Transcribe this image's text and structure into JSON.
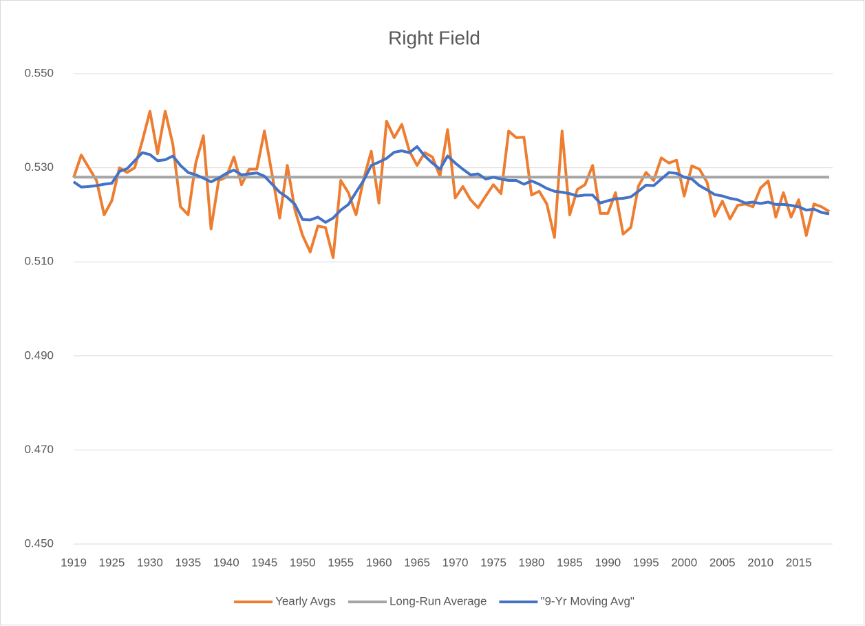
{
  "chart_data": {
    "type": "line",
    "title": "Right Field",
    "categories": [
      "1919",
      null,
      null,
      null,
      null,
      "1925",
      null,
      null,
      null,
      null,
      "1930",
      null,
      null,
      null,
      null,
      "1935",
      null,
      null,
      null,
      null,
      "1940",
      null,
      null,
      null,
      null,
      "1945",
      null,
      null,
      null,
      null,
      "1950",
      null,
      null,
      null,
      null,
      "1955",
      null,
      null,
      null,
      null,
      "1960",
      null,
      null,
      null,
      null,
      "1965",
      null,
      null,
      null,
      null,
      "1970",
      null,
      null,
      null,
      null,
      "1975",
      null,
      null,
      null,
      null,
      "1980",
      null,
      null,
      null,
      null,
      "1985",
      null,
      null,
      null,
      null,
      "1990",
      null,
      null,
      null,
      null,
      "1995",
      null,
      null,
      null,
      null,
      "2000",
      null,
      null,
      null,
      null,
      "2005",
      null,
      null,
      null,
      null,
      "2010",
      null,
      null,
      null,
      null,
      "2015",
      null,
      null,
      null,
      null
    ],
    "series": [
      {
        "name": "Yearly Avgs",
        "color": "#ed7d31",
        "values": [
          0.5279,
          0.5327,
          0.53,
          0.5273,
          0.52,
          0.523,
          0.53,
          0.529,
          0.53,
          0.5357,
          0.542,
          0.533,
          0.542,
          0.535,
          0.5217,
          0.52,
          0.531,
          0.5368,
          0.517,
          0.5273,
          0.528,
          0.5323,
          0.5264,
          0.5297,
          0.5297,
          0.5378,
          0.5286,
          0.5193,
          0.5305,
          0.521,
          0.5156,
          0.5121,
          0.5176,
          0.5173,
          0.5109,
          0.5273,
          0.5247,
          0.52,
          0.5276,
          0.5335,
          0.5225,
          0.5399,
          0.5364,
          0.5392,
          0.5335,
          0.5305,
          0.5332,
          0.5323,
          0.5282,
          0.5381,
          0.5236,
          0.526,
          0.5232,
          0.5215,
          0.524,
          0.5264,
          0.5245,
          0.5378,
          0.5364,
          0.5365,
          0.5242,
          0.525,
          0.5223,
          0.5152,
          0.5378,
          0.52,
          0.5254,
          0.5264,
          0.5305,
          0.5203,
          0.5203,
          0.5247,
          0.5159,
          0.5173,
          0.5261,
          0.529,
          0.5273,
          0.5321,
          0.531,
          0.5316,
          0.524,
          0.5304,
          0.5297,
          0.5269,
          0.5197,
          0.5229,
          0.5191,
          0.522,
          0.5223,
          0.5217,
          0.5257,
          0.5272,
          0.5195,
          0.5247,
          0.5195,
          0.5232,
          0.5156,
          0.5223,
          0.5217,
          0.5207
        ]
      },
      {
        "name": "Long-Run Average",
        "color": "#a5a5a5",
        "values": [
          0.528,
          0.528,
          0.528,
          0.528,
          0.528,
          0.528,
          0.528,
          0.528,
          0.528,
          0.528,
          0.528,
          0.528,
          0.528,
          0.528,
          0.528,
          0.528,
          0.528,
          0.528,
          0.528,
          0.528,
          0.528,
          0.528,
          0.528,
          0.528,
          0.528,
          0.528,
          0.528,
          0.528,
          0.528,
          0.528,
          0.528,
          0.528,
          0.528,
          0.528,
          0.528,
          0.528,
          0.528,
          0.528,
          0.528,
          0.528,
          0.528,
          0.528,
          0.528,
          0.528,
          0.528,
          0.528,
          0.528,
          0.528,
          0.528,
          0.528,
          0.528,
          0.528,
          0.528,
          0.528,
          0.528,
          0.528,
          0.528,
          0.528,
          0.528,
          0.528,
          0.528,
          0.528,
          0.528,
          0.528,
          0.528,
          0.528,
          0.528,
          0.528,
          0.528,
          0.528,
          0.528,
          0.528,
          0.528,
          0.528,
          0.528,
          0.528,
          0.528,
          0.528,
          0.528,
          0.528,
          0.528,
          0.528,
          0.528,
          0.528,
          0.528,
          0.528,
          0.528,
          0.528,
          0.528,
          0.528,
          0.528,
          0.528,
          0.528,
          0.528,
          0.528,
          0.528,
          0.528,
          0.528,
          0.528,
          0.528
        ]
      },
      {
        "name": "\"9-Yr Moving Avg\"",
        "color": "#4472c4",
        "values": [
          0.527,
          0.5259,
          0.526,
          0.5262,
          0.5265,
          0.5267,
          0.5292,
          0.5298,
          0.5315,
          0.5332,
          0.5328,
          0.5315,
          0.5317,
          0.5325,
          0.5305,
          0.529,
          0.5285,
          0.5278,
          0.527,
          0.5278,
          0.5288,
          0.5295,
          0.5285,
          0.5287,
          0.5289,
          0.5282,
          0.5265,
          0.5248,
          0.5237,
          0.5222,
          0.519,
          0.5189,
          0.5195,
          0.5184,
          0.5193,
          0.521,
          0.5222,
          0.5248,
          0.5273,
          0.5305,
          0.5312,
          0.532,
          0.5333,
          0.5336,
          0.5332,
          0.5345,
          0.5325,
          0.531,
          0.5297,
          0.5325,
          0.531,
          0.5297,
          0.5285,
          0.5287,
          0.5276,
          0.528,
          0.5276,
          0.5273,
          0.5273,
          0.5265,
          0.5272,
          0.5265,
          0.5256,
          0.525,
          0.5248,
          0.5245,
          0.524,
          0.5242,
          0.5242,
          0.5225,
          0.523,
          0.5234,
          0.5235,
          0.5238,
          0.525,
          0.5263,
          0.5262,
          0.5276,
          0.529,
          0.5288,
          0.528,
          0.5276,
          0.5262,
          0.5253,
          0.5243,
          0.524,
          0.5235,
          0.5232,
          0.5225,
          0.5227,
          0.5224,
          0.5227,
          0.5222,
          0.5222,
          0.522,
          0.5217,
          0.521,
          0.5212,
          0.5205,
          0.5202
        ]
      }
    ],
    "ylim": [
      0.45,
      0.55
    ],
    "yticks": [
      {
        "value": 0.45,
        "label": "0.450"
      },
      {
        "value": 0.47,
        "label": "0.470"
      },
      {
        "value": 0.49,
        "label": "0.490"
      },
      {
        "value": 0.51,
        "label": "0.510"
      },
      {
        "value": 0.53,
        "label": "0.530"
      },
      {
        "value": 0.55,
        "label": "0.550"
      }
    ],
    "grid": true,
    "legend": "bottom"
  }
}
